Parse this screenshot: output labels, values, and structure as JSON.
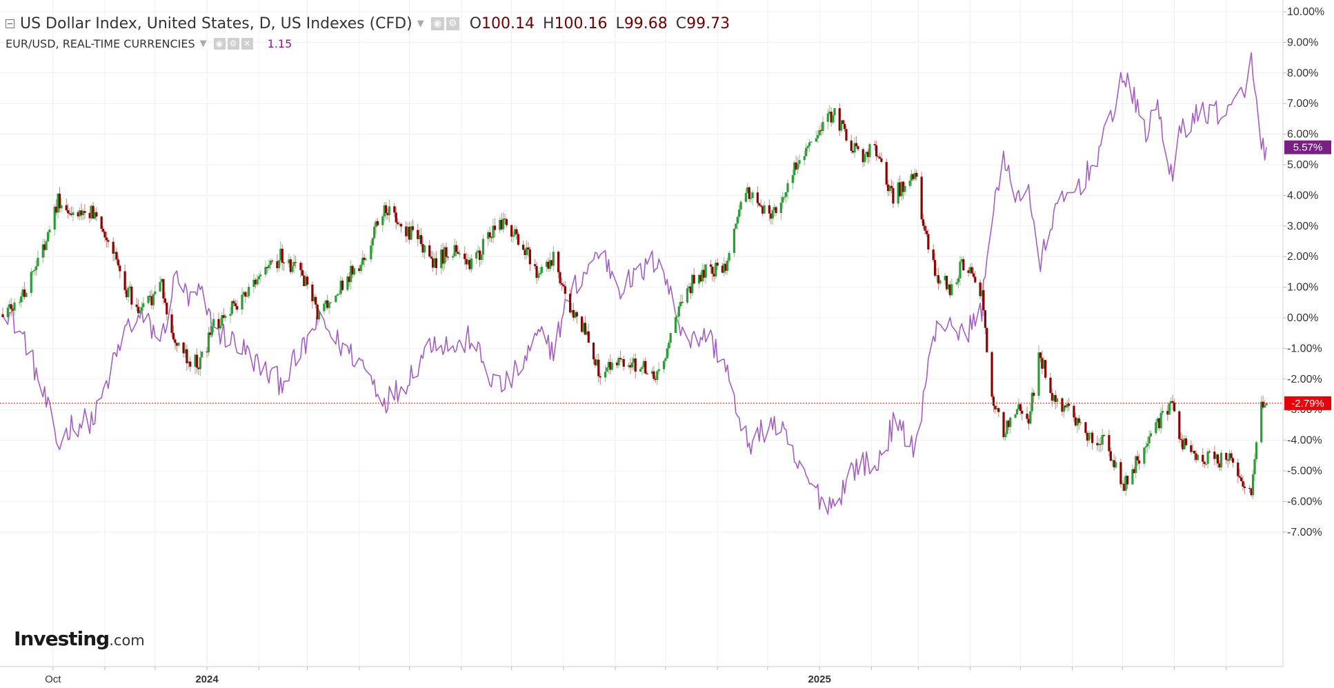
{
  "legend": {
    "main_title": "US Dollar Index, United States, D, US Indexes (CFD)",
    "ohlc": {
      "o_label": "O",
      "o": "100.14",
      "h_label": "H",
      "h": "100.16",
      "l_label": "L",
      "l": "99.68",
      "c_label": "C",
      "c": "99.73"
    },
    "compare_title": "EUR/USD, REAL-TIME CURRENCIES",
    "compare_value": "1.15"
  },
  "logo": {
    "main": "Investing",
    "suffix": ".com"
  },
  "colors": {
    "up_candle": "#2a9d36",
    "down_candle": "#8b0000",
    "eurusd_line": "#a35fbf",
    "last_price_badge": "#e8000b",
    "eurusd_badge": "#7a1f86",
    "grid": "#f0f0f0"
  },
  "chart_data": {
    "type": "candlestick",
    "percent_axis": {
      "ticks": [
        "10.00%",
        "9.00%",
        "8.00%",
        "7.00%",
        "6.00%",
        "5.00%",
        "4.00%",
        "3.00%",
        "2.00%",
        "1.00%",
        "0.00%",
        "-1.00%",
        "-2.00%",
        "-3.00%",
        "-4.00%",
        "-5.00%",
        "-6.00%",
        "-7.00%"
      ],
      "range": [
        -7,
        10
      ]
    },
    "time_axis": {
      "labels": [
        "Oct",
        "2024",
        "2025"
      ],
      "range": [
        "2023-09-01",
        "2025-09-25"
      ]
    },
    "grid": true,
    "series": [
      {
        "name": "US Dollar Index",
        "kind": "candlestick",
        "last_value_label": "-2.79%",
        "last_value": -2.79,
        "anchors": [
          [
            "2023-09-01",
            0.0
          ],
          [
            "2023-09-15",
            0.9
          ],
          [
            "2023-09-28",
            2.7
          ],
          [
            "2023-10-04",
            3.8
          ],
          [
            "2023-10-12",
            3.2
          ],
          [
            "2023-10-26",
            3.5
          ],
          [
            "2023-11-03",
            2.5
          ],
          [
            "2023-11-14",
            0.9
          ],
          [
            "2023-11-23",
            0.2
          ],
          [
            "2023-12-05",
            1.0
          ],
          [
            "2023-12-14",
            -0.9
          ],
          [
            "2023-12-21",
            -1.3
          ],
          [
            "2023-12-28",
            -1.5
          ],
          [
            "2024-01-05",
            -0.3
          ],
          [
            "2024-01-16",
            0.3
          ],
          [
            "2024-01-26",
            0.9
          ],
          [
            "2024-02-05",
            1.5
          ],
          [
            "2024-02-14",
            2.0
          ],
          [
            "2024-02-28",
            1.3
          ],
          [
            "2024-03-08",
            0.0
          ],
          [
            "2024-03-19",
            1.0
          ],
          [
            "2024-04-03",
            1.8
          ],
          [
            "2024-04-16",
            3.7
          ],
          [
            "2024-04-26",
            3.0
          ],
          [
            "2024-05-08",
            2.5
          ],
          [
            "2024-05-15",
            1.8
          ],
          [
            "2024-05-30",
            2.3
          ],
          [
            "2024-06-07",
            1.7
          ],
          [
            "2024-06-17",
            2.6
          ],
          [
            "2024-06-26",
            3.2
          ],
          [
            "2024-07-08",
            2.4
          ],
          [
            "2024-07-17",
            1.3
          ],
          [
            "2024-07-26",
            2.0
          ],
          [
            "2024-08-05",
            0.3
          ],
          [
            "2024-08-14",
            -0.5
          ],
          [
            "2024-08-23",
            -1.8
          ],
          [
            "2024-09-04",
            -1.3
          ],
          [
            "2024-09-13",
            -1.5
          ],
          [
            "2024-09-27",
            -1.9
          ],
          [
            "2024-10-08",
            0.0
          ],
          [
            "2024-10-17",
            1.2
          ],
          [
            "2024-10-25",
            1.6
          ],
          [
            "2024-11-06",
            1.5
          ],
          [
            "2024-11-15",
            3.9
          ],
          [
            "2024-11-22",
            4.1
          ],
          [
            "2024-12-03",
            3.3
          ],
          [
            "2024-12-10",
            3.8
          ],
          [
            "2024-12-20",
            5.3
          ],
          [
            "2025-01-02",
            6.2
          ],
          [
            "2025-01-10",
            6.7
          ],
          [
            "2025-01-20",
            5.6
          ],
          [
            "2025-01-27",
            5.3
          ],
          [
            "2025-02-03",
            5.5
          ],
          [
            "2025-02-14",
            4.0
          ],
          [
            "2025-02-28",
            4.7
          ],
          [
            "2025-03-04",
            3.0
          ],
          [
            "2025-03-11",
            1.5
          ],
          [
            "2025-03-20",
            1.0
          ],
          [
            "2025-03-27",
            1.7
          ],
          [
            "2025-04-01",
            1.4
          ],
          [
            "2025-04-08",
            0.7
          ],
          [
            "2025-04-14",
            -2.5
          ],
          [
            "2025-04-21",
            -3.8
          ],
          [
            "2025-04-29",
            -2.9
          ],
          [
            "2025-05-06",
            -3.5
          ],
          [
            "2025-05-12",
            -1.1
          ],
          [
            "2025-05-20",
            -2.5
          ],
          [
            "2025-05-29",
            -3.0
          ],
          [
            "2025-06-10",
            -3.8
          ],
          [
            "2025-06-20",
            -4.0
          ],
          [
            "2025-07-01",
            -5.5
          ],
          [
            "2025-07-08",
            -4.8
          ],
          [
            "2025-07-16",
            -4.0
          ],
          [
            "2025-07-22",
            -3.5
          ],
          [
            "2025-07-31",
            -2.8
          ],
          [
            "2025-08-05",
            -4.1
          ],
          [
            "2025-08-15",
            -4.5
          ],
          [
            "2025-08-25",
            -4.7
          ],
          [
            "2025-09-02",
            -4.6
          ],
          [
            "2025-09-10",
            -5.2
          ],
          [
            "2025-09-16",
            -5.6
          ],
          [
            "2025-09-22",
            -3.0
          ],
          [
            "2025-09-25",
            -2.79
          ]
        ]
      },
      {
        "name": "EUR/USD",
        "kind": "line",
        "last_value_label": "5.57%",
        "last_value": 5.57,
        "anchors": [
          [
            "2023-09-01",
            0.5
          ],
          [
            "2023-09-15",
            -0.8
          ],
          [
            "2023-09-28",
            -3.0
          ],
          [
            "2023-10-04",
            -4.2
          ],
          [
            "2023-10-12",
            -3.5
          ],
          [
            "2023-10-26",
            -3.3
          ],
          [
            "2023-11-03",
            -2.0
          ],
          [
            "2023-11-14",
            -0.3
          ],
          [
            "2023-11-23",
            0.0
          ],
          [
            "2023-12-05",
            -0.7
          ],
          [
            "2023-12-14",
            1.5
          ],
          [
            "2023-12-21",
            0.5
          ],
          [
            "2023-12-28",
            0.8
          ],
          [
            "2024-01-05",
            -0.4
          ],
          [
            "2024-01-16",
            -0.7
          ],
          [
            "2024-01-26",
            -1.2
          ],
          [
            "2024-02-05",
            -1.8
          ],
          [
            "2024-02-14",
            -2.1
          ],
          [
            "2024-02-28",
            -1.0
          ],
          [
            "2024-03-08",
            0.0
          ],
          [
            "2024-03-19",
            -0.8
          ],
          [
            "2024-04-03",
            -1.5
          ],
          [
            "2024-04-16",
            -2.7
          ],
          [
            "2024-04-26",
            -2.3
          ],
          [
            "2024-05-08",
            -1.3
          ],
          [
            "2024-05-15",
            -0.7
          ],
          [
            "2024-05-30",
            -1.0
          ],
          [
            "2024-06-07",
            -0.6
          ],
          [
            "2024-06-17",
            -1.9
          ],
          [
            "2024-06-26",
            -2.3
          ],
          [
            "2024-07-08",
            -1.5
          ],
          [
            "2024-07-17",
            -0.6
          ],
          [
            "2024-07-26",
            -1.0
          ],
          [
            "2024-08-05",
            0.8
          ],
          [
            "2024-08-14",
            1.5
          ],
          [
            "2024-08-23",
            2.2
          ],
          [
            "2024-09-04",
            1.0
          ],
          [
            "2024-09-13",
            1.3
          ],
          [
            "2024-09-27",
            2.0
          ],
          [
            "2024-10-08",
            0.0
          ],
          [
            "2024-10-17",
            -0.8
          ],
          [
            "2024-10-25",
            -0.5
          ],
          [
            "2024-11-06",
            -1.5
          ],
          [
            "2024-11-15",
            -3.8
          ],
          [
            "2024-11-22",
            -4.1
          ],
          [
            "2024-12-03",
            -3.4
          ],
          [
            "2024-12-10",
            -3.8
          ],
          [
            "2024-12-20",
            -5.0
          ],
          [
            "2025-01-02",
            -5.9
          ],
          [
            "2025-01-10",
            -6.1
          ],
          [
            "2025-01-20",
            -5.0
          ],
          [
            "2025-01-27",
            -4.7
          ],
          [
            "2025-02-03",
            -5.0
          ],
          [
            "2025-02-14",
            -3.5
          ],
          [
            "2025-02-28",
            -4.2
          ],
          [
            "2025-03-04",
            -2.5
          ],
          [
            "2025-03-11",
            -0.5
          ],
          [
            "2025-03-20",
            0.0
          ],
          [
            "2025-03-27",
            -0.6
          ],
          [
            "2025-04-01",
            -0.3
          ],
          [
            "2025-04-08",
            0.3
          ],
          [
            "2025-04-14",
            3.5
          ],
          [
            "2025-04-21",
            5.0
          ],
          [
            "2025-04-29",
            4.0
          ],
          [
            "2025-05-06",
            4.3
          ],
          [
            "2025-05-12",
            1.5
          ],
          [
            "2025-05-20",
            3.3
          ],
          [
            "2025-05-29",
            3.9
          ],
          [
            "2025-06-10",
            4.7
          ],
          [
            "2025-06-20",
            5.8
          ],
          [
            "2025-07-01",
            7.9
          ],
          [
            "2025-07-08",
            7.1
          ],
          [
            "2025-07-16",
            6.0
          ],
          [
            "2025-07-22",
            7.0
          ],
          [
            "2025-07-31",
            4.4
          ],
          [
            "2025-08-05",
            6.2
          ],
          [
            "2025-08-15",
            6.6
          ],
          [
            "2025-08-25",
            6.8
          ],
          [
            "2025-09-02",
            6.6
          ],
          [
            "2025-09-10",
            7.3
          ],
          [
            "2025-09-16",
            8.3
          ],
          [
            "2025-09-22",
            5.6
          ],
          [
            "2025-09-25",
            5.57
          ]
        ]
      }
    ]
  }
}
